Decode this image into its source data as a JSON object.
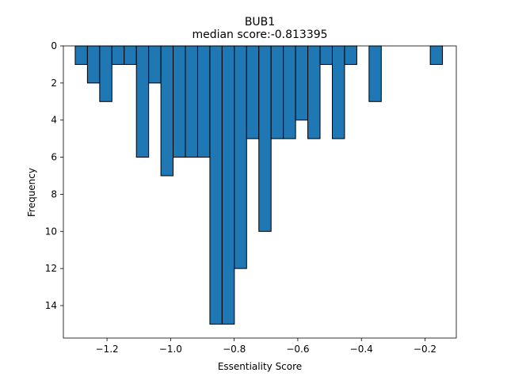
{
  "chart_data": {
    "type": "bar",
    "title": "BUB1",
    "subtitle": "median score:-0.813395",
    "xlabel": "Essentiality Score",
    "ylabel": "Frequency",
    "y_inverted": true,
    "grid": false,
    "xlim": [
      -1.3372,
      -0.1016
    ],
    "ylim": [
      15.75,
      0
    ],
    "bin_width": 0.0385,
    "x_ticks": [
      {
        "value": -1.2,
        "label": "−1.2"
      },
      {
        "value": -1.0,
        "label": "−1.0"
      },
      {
        "value": -0.8,
        "label": "−0.8"
      },
      {
        "value": -0.6,
        "label": "−0.6"
      },
      {
        "value": -0.4,
        "label": "−0.4"
      },
      {
        "value": -0.2,
        "label": "−0.2"
      }
    ],
    "y_ticks": [
      {
        "value": 0,
        "label": "0"
      },
      {
        "value": 2,
        "label": "2"
      },
      {
        "value": 4,
        "label": "4"
      },
      {
        "value": 6,
        "label": "6"
      },
      {
        "value": 8,
        "label": "8"
      },
      {
        "value": 10,
        "label": "10"
      },
      {
        "value": 12,
        "label": "12"
      },
      {
        "value": 14,
        "label": "14"
      }
    ],
    "bins": [
      {
        "left": -1.3,
        "count": 1
      },
      {
        "left": -1.2615,
        "count": 2
      },
      {
        "left": -1.223,
        "count": 3
      },
      {
        "left": -1.1845,
        "count": 1
      },
      {
        "left": -1.146,
        "count": 1
      },
      {
        "left": -1.1075,
        "count": 6
      },
      {
        "left": -1.069,
        "count": 2
      },
      {
        "left": -1.0305,
        "count": 7
      },
      {
        "left": -0.992,
        "count": 6
      },
      {
        "left": -0.9535,
        "count": 6
      },
      {
        "left": -0.915,
        "count": 6
      },
      {
        "left": -0.8765,
        "count": 15
      },
      {
        "left": -0.838,
        "count": 15
      },
      {
        "left": -0.7995,
        "count": 12
      },
      {
        "left": -0.761,
        "count": 5
      },
      {
        "left": -0.7225,
        "count": 10
      },
      {
        "left": -0.684,
        "count": 5
      },
      {
        "left": -0.6455,
        "count": 5
      },
      {
        "left": -0.607,
        "count": 4
      },
      {
        "left": -0.5685,
        "count": 5
      },
      {
        "left": -0.53,
        "count": 1
      },
      {
        "left": -0.4915,
        "count": 5
      },
      {
        "left": -0.453,
        "count": 1
      },
      {
        "left": -0.4145,
        "count": 0
      },
      {
        "left": -0.376,
        "count": 3
      },
      {
        "left": -0.3375,
        "count": 0
      },
      {
        "left": -0.299,
        "count": 0
      },
      {
        "left": -0.2605,
        "count": 0
      },
      {
        "left": -0.222,
        "count": 0
      },
      {
        "left": -0.1835,
        "count": 1
      }
    ],
    "bar_color": "#1f77b4",
    "edge_color": "#000000"
  }
}
